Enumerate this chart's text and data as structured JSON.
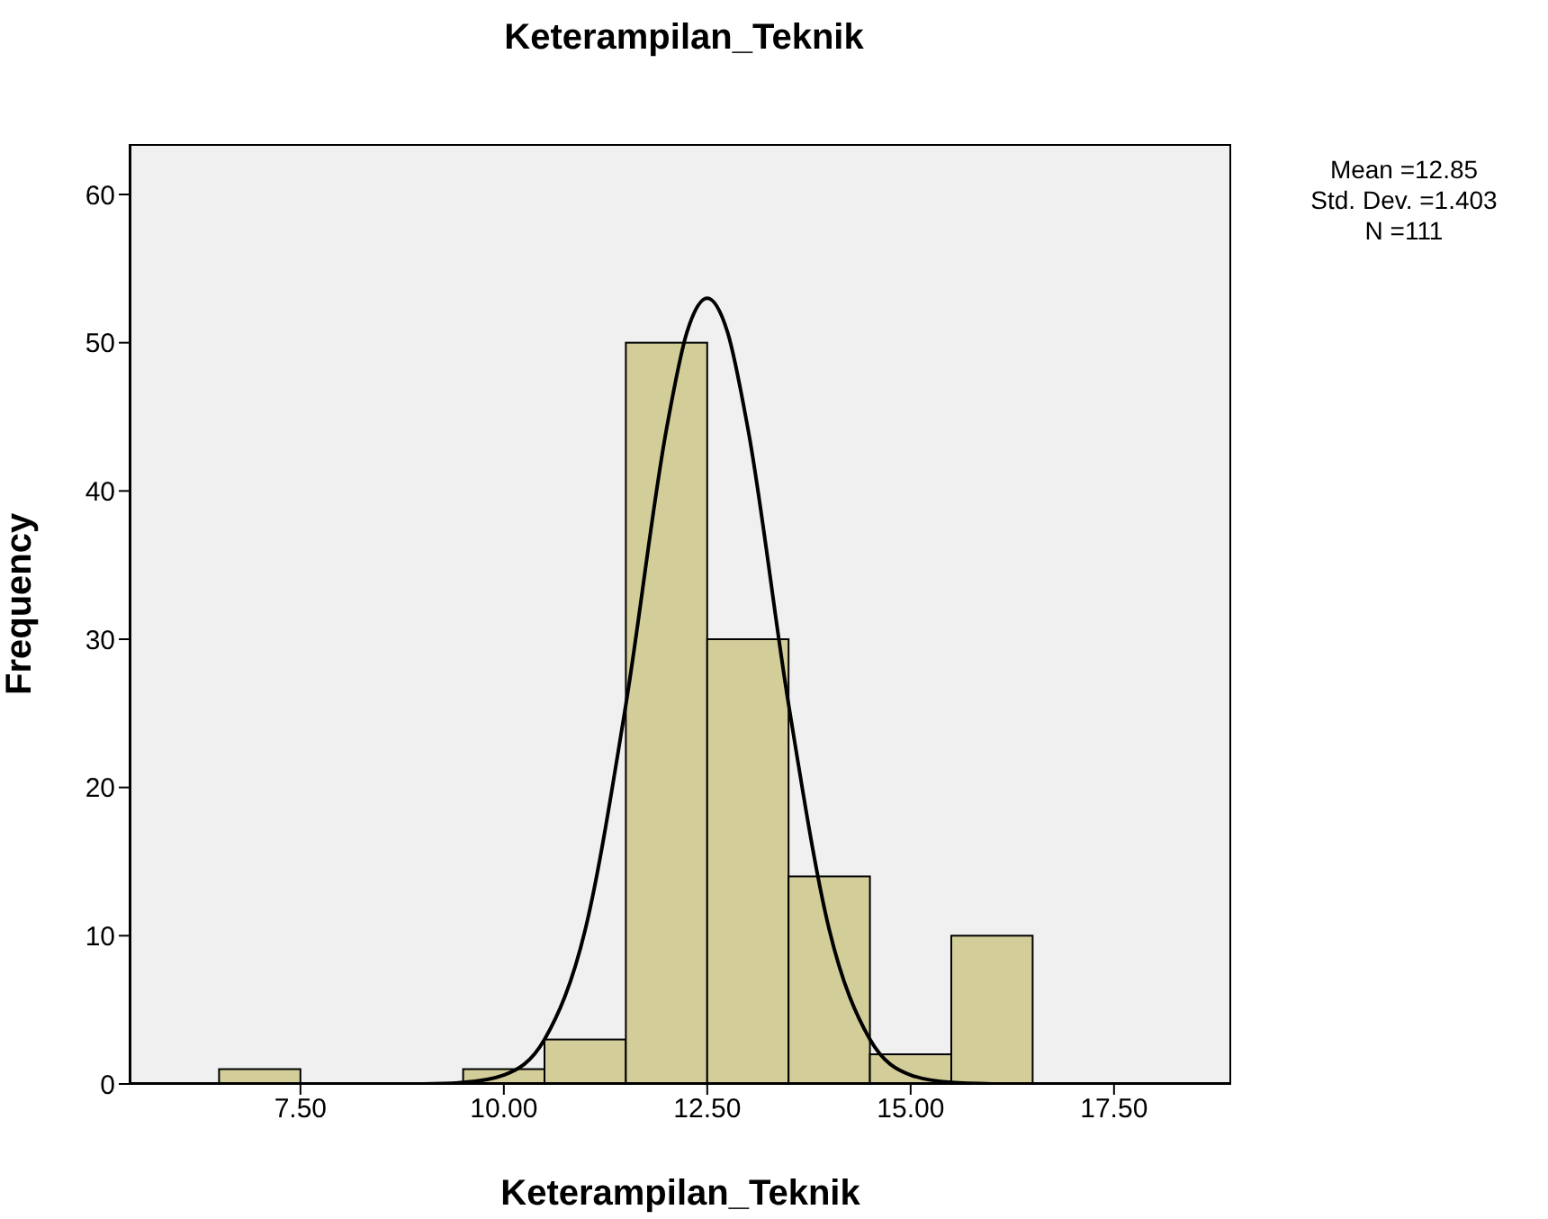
{
  "chart_data": {
    "type": "histogram",
    "title": "Keterampilan_Teknik",
    "xlabel": "Keterampilan_Teknik",
    "ylabel": "Frequency",
    "annotations": [
      "Mean =12.85",
      "Std. Dev. =1.403",
      "N =111"
    ],
    "bins": [
      6.5,
      7.5,
      8.5,
      9.5,
      10.5,
      11.5,
      12.5,
      13.5,
      14.5,
      15.5,
      16.5
    ],
    "values": [
      1,
      0,
      0,
      1,
      3,
      50,
      30,
      14,
      2,
      10
    ],
    "color": "#d3ce99",
    "series": [
      {
        "type": "line",
        "color": "#000000",
        "x": [
          9,
          9.5,
          10,
          10.5,
          11,
          11.5,
          12,
          12.25,
          12.5,
          12.75,
          13,
          13.5,
          14,
          14.5,
          15,
          15.5,
          16
        ],
        "values": [
          0,
          0.1,
          0.6,
          3,
          10.4,
          25.6,
          44.2,
          50.7,
          53,
          50.7,
          44.2,
          25.6,
          10.4,
          3,
          0.6,
          0.1,
          0
        ]
      }
    ],
    "xlim": [
      5.4,
      18.94
    ],
    "xticks": [
      {
        "value": 7.5,
        "label": "7.50"
      },
      {
        "value": 10,
        "label": "10.00"
      },
      {
        "value": 12.5,
        "label": "12.50"
      },
      {
        "value": 15,
        "label": "15.00"
      },
      {
        "value": 17.5,
        "label": "17.50"
      }
    ],
    "ylim": [
      0,
      63.4
    ],
    "yticks": [
      0,
      10,
      20,
      30,
      40,
      50,
      60
    ],
    "grid": false,
    "marker": "none",
    "line_style": "solid"
  }
}
